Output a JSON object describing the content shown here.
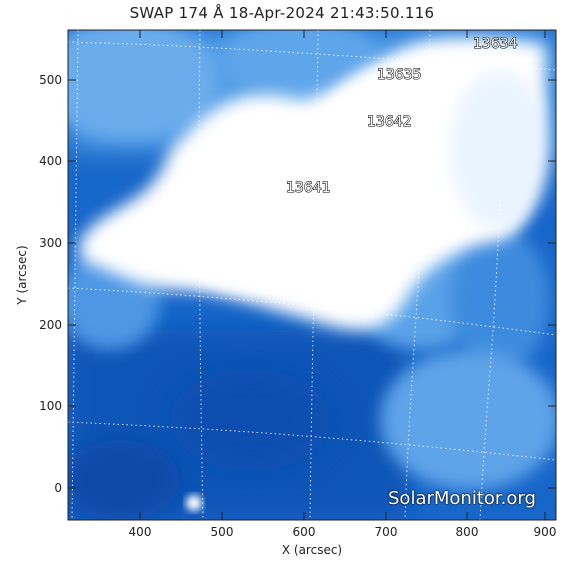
{
  "title": "SWAP 174 Å 18-Apr-2024 21:43:50.116",
  "axes": {
    "xlabel": "X (arcsec)",
    "ylabel": "Y (arcsec)",
    "xticks": [
      "400",
      "500",
      "600",
      "700",
      "800",
      "900"
    ],
    "yticks": [
      "0",
      "100",
      "200",
      "300",
      "400",
      "500"
    ]
  },
  "regions": [
    {
      "id": "13634",
      "label": "13634"
    },
    {
      "id": "13635",
      "label": "13635"
    },
    {
      "id": "13642",
      "label": "13642"
    },
    {
      "id": "13641",
      "label": "13641"
    }
  ],
  "watermark": "SolarMonitor.org",
  "colors": {
    "frame": "#222222",
    "bright": "#ffffff",
    "mid_blue": "#3a8ae0",
    "dark_blue": "#0a4fae",
    "grid": "#ffffff"
  }
}
